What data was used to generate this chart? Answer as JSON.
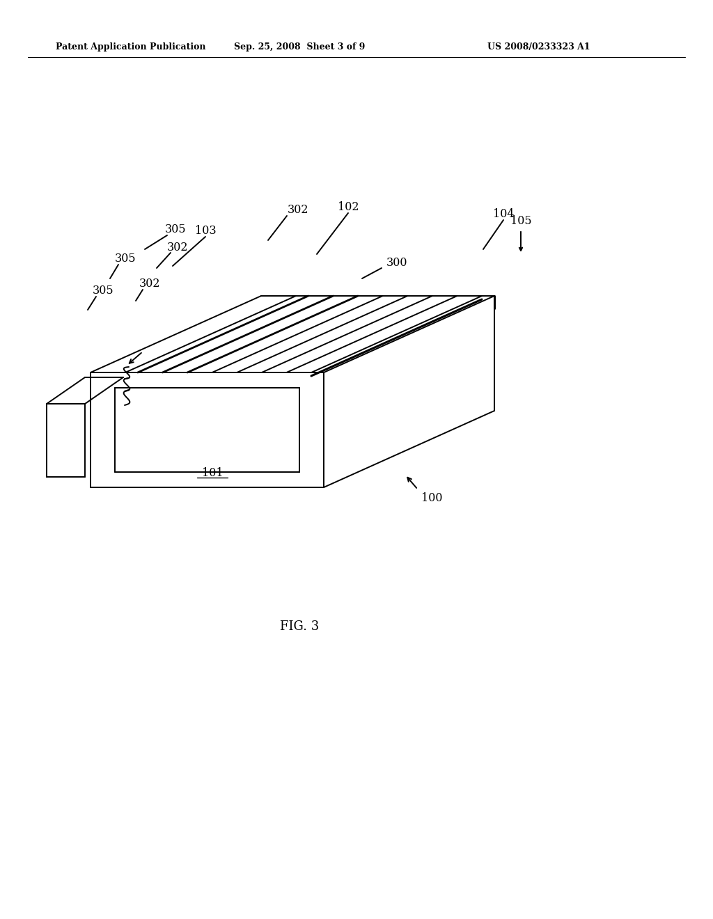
{
  "bg_color": "#ffffff",
  "line_color": "#000000",
  "header_left": "Patent Application Publication",
  "header_mid": "Sep. 25, 2008  Sheet 3 of 9",
  "header_right": "US 2008/0233323 A1",
  "figure_label": "FIG. 3"
}
